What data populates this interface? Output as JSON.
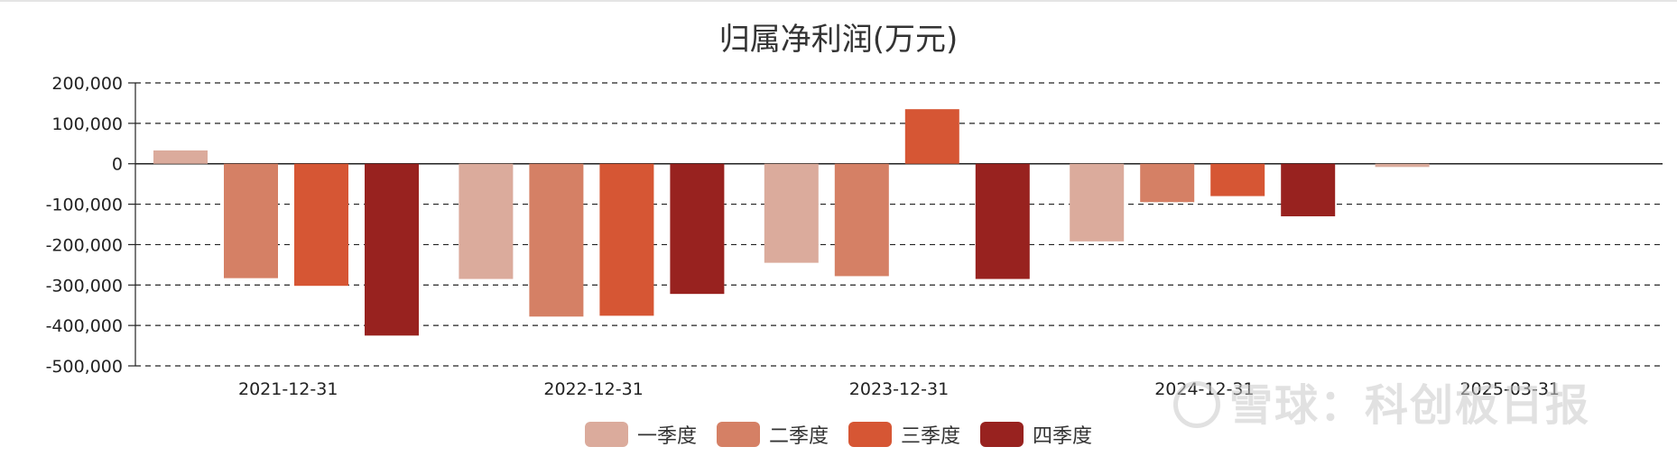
{
  "chart_data": {
    "type": "bar",
    "title": "归属净利润(万元)",
    "categories": [
      "2021-12-31",
      "2022-12-31",
      "2023-12-31",
      "2024-12-31",
      "2025-03-31"
    ],
    "series": [
      {
        "name": "一季度",
        "color": "#dbab9c",
        "values": [
          33000,
          -285000,
          -245000,
          -192000,
          -8000
        ]
      },
      {
        "name": "二季度",
        "color": "#d58065",
        "values": [
          -283000,
          -378000,
          -278000,
          -95000,
          null
        ]
      },
      {
        "name": "三季度",
        "color": "#d65634",
        "values": [
          -302000,
          -376000,
          135000,
          -80000,
          null
        ]
      },
      {
        "name": "四季度",
        "color": "#98221f",
        "values": [
          -425000,
          -322000,
          -285000,
          -130000,
          null
        ]
      }
    ],
    "ylim": [
      -500000,
      200000
    ],
    "yticks": [
      200000,
      100000,
      0,
      -100000,
      -200000,
      -300000,
      -400000,
      -500000
    ],
    "ytick_labels": [
      "200,000",
      "100,000",
      "0",
      "-100,000",
      "-200,000",
      "-300,000",
      "-400,000",
      "-500,000"
    ],
    "grid": true,
    "legend_position": "bottom"
  },
  "watermark": "雪球：科创板日报"
}
